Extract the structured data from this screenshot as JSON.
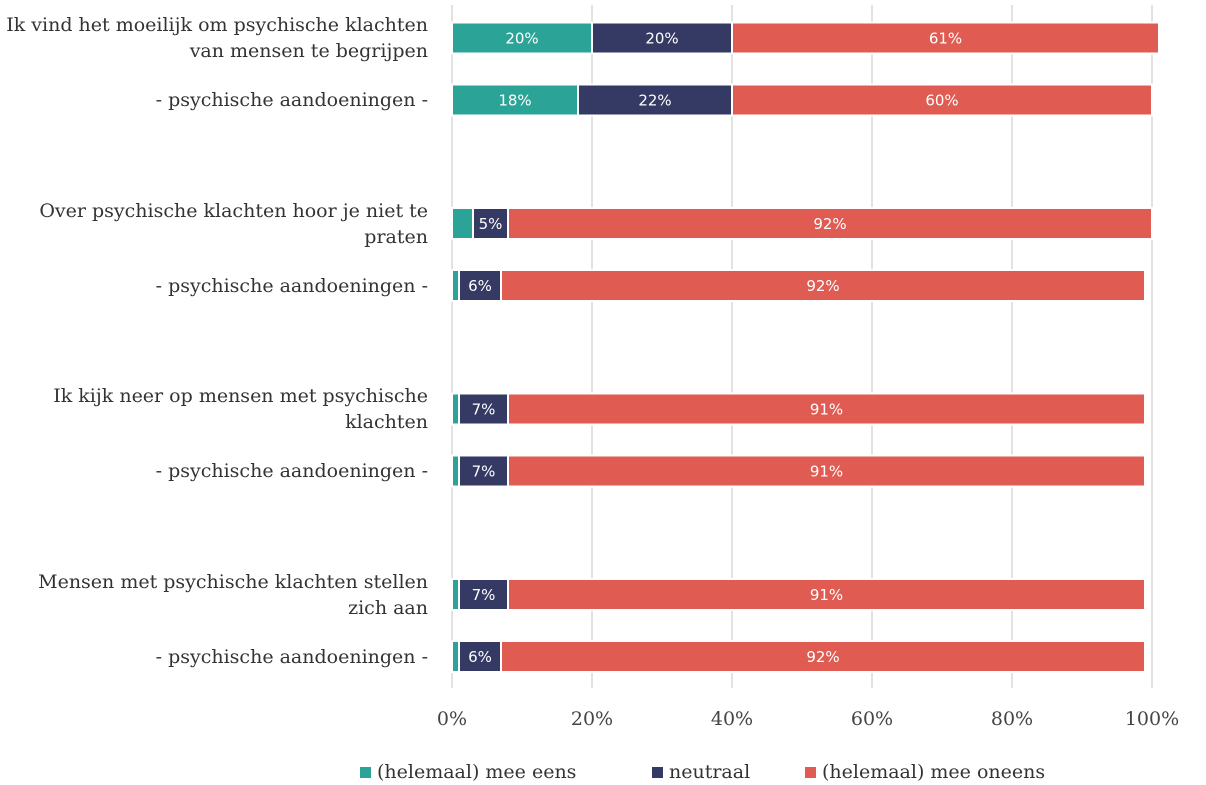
{
  "chart_data": {
    "type": "stacked_barh",
    "categories": [
      "Ik vind het moeilijk om psychische klachten van mensen te begrijpen",
      "- psychische aandoeningen -",
      "Over psychische klachten hoor je niet te praten",
      "- psychische aandoeningen -",
      "Ik kijk neer op mensen met psychische klachten",
      "- psychische aandoeningen -",
      "Mensen met psychische klachten stellen zich aan",
      "- psychische aandoeningen -"
    ],
    "series": [
      {
        "name": "(helemaal) mee eens",
        "color": "#2ba497",
        "values": [
          20,
          18,
          3,
          1,
          1,
          1,
          1,
          1
        ],
        "value_labels": [
          "20%",
          "18%",
          null,
          null,
          null,
          null,
          null,
          null
        ]
      },
      {
        "name": "neutraal",
        "color": "#343a64",
        "values": [
          20,
          22,
          5,
          6,
          7,
          7,
          7,
          6
        ],
        "value_labels": [
          "20%",
          "22%",
          "5%",
          "6%",
          "7%",
          "7%",
          "7%",
          "6%"
        ]
      },
      {
        "name": "(helemaal) mee oneens",
        "color": "#e05b52",
        "values": [
          61,
          60,
          92,
          92,
          91,
          91,
          91,
          92
        ],
        "value_labels": [
          "61%",
          "60%",
          "92%",
          "92%",
          "91%",
          "91%",
          "91%",
          "92%"
        ]
      }
    ],
    "xlim": [
      0,
      100
    ],
    "xticks": [
      {
        "value": 0,
        "label": "0%"
      },
      {
        "value": 20,
        "label": "20%"
      },
      {
        "value": 40,
        "label": "40%"
      },
      {
        "value": 60,
        "label": "60%"
      },
      {
        "value": 80,
        "label": "80%"
      },
      {
        "value": 100,
        "label": "100%"
      }
    ],
    "grid": true,
    "legend": "bottom"
  }
}
